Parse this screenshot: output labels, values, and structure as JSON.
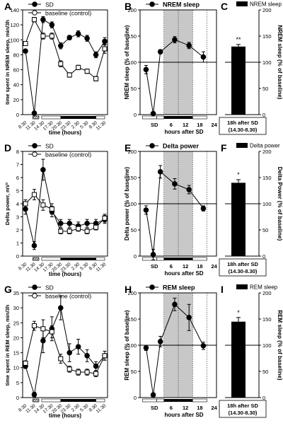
{
  "chart_data": [
    {
      "panel": "A",
      "type": "line",
      "ylabel": "time spent in NREM sleep, min/3h",
      "xlabel": "time (hours)",
      "ylim": [
        0,
        140
      ],
      "yticks": [
        0,
        20,
        40,
        60,
        80,
        100,
        120,
        140
      ],
      "x": [
        "8.30",
        "11.30",
        "14.30",
        "17.30",
        "20.30",
        "23.30",
        "2.30",
        "5.30",
        "8.30",
        "11.30"
      ],
      "legend": [
        "SD",
        "baseline (control)"
      ],
      "series": [
        {
          "name": "SD",
          "values": [
            85,
            2,
            127,
            120,
            92,
            103,
            108,
            102,
            80,
            98
          ],
          "errors": [
            0,
            0,
            4,
            4,
            4,
            3,
            4,
            4,
            4,
            5
          ]
        },
        {
          "name": "baseline (control)",
          "values": [
            95,
            127,
            105,
            105,
            68,
            53,
            63,
            58,
            48,
            88
          ],
          "errors": [
            0,
            3,
            4,
            4,
            4,
            3,
            3,
            3,
            3,
            6
          ]
        }
      ]
    },
    {
      "panel": "B",
      "type": "line",
      "legend": [
        "NREM sleep"
      ],
      "ylabel": "NREM sleep (% of baseline)",
      "xlabel": "hours after SD",
      "ylim": [
        0,
        200
      ],
      "yticks": [
        0,
        50,
        100,
        150,
        200
      ],
      "xticks": [
        "6",
        "12",
        "18",
        "24"
      ],
      "sd_label": "SD",
      "x": [
        -4.5,
        -1.5,
        1.5,
        7.5,
        13.5,
        19.5
      ],
      "values": [
        86,
        2,
        120,
        143,
        132,
        110
      ],
      "errors": [
        8,
        0,
        4,
        6,
        6,
        10
      ]
    },
    {
      "panel": "C",
      "type": "bar",
      "legend": [
        "NREM sleep"
      ],
      "ylabel": "NREM sleep (% of baseline)",
      "ylim": [
        0,
        200
      ],
      "yticks": [
        0,
        50,
        100,
        150,
        200
      ],
      "categories": [
        "18h after SD (14.30-8.30)"
      ],
      "values": [
        130
      ],
      "errors": [
        4
      ],
      "significance": "**"
    },
    {
      "panel": "D",
      "type": "line",
      "ylabel": "Delta power, mV²",
      "xlabel": "time (hours)",
      "ylim": [
        0,
        8
      ],
      "yticks": [
        0,
        1,
        2,
        3,
        4,
        5,
        6,
        7,
        8
      ],
      "x": [
        "8.30",
        "11.30",
        "14.30",
        "17.30",
        "20.30",
        "23.30",
        "2.30",
        "5.30",
        "8.30",
        "11.30"
      ],
      "legend": [
        "SD",
        "baseline (control)"
      ],
      "series": [
        {
          "name": "SD",
          "values": [
            3.6,
            0.8,
            6.6,
            3.4,
            2.5,
            2.5,
            2.3,
            2.5,
            2.5,
            2.8
          ],
          "errors": [
            0.4,
            0.3,
            0.8,
            0.4,
            0.3,
            0.3,
            0.3,
            0.3,
            0.3,
            0.3
          ]
        },
        {
          "name": "baseline (control)",
          "values": [
            4.0,
            4.7,
            3.9,
            3.6,
            1.9,
            1.9,
            2.1,
            1.9,
            2.2,
            2.9
          ],
          "errors": [
            0.3,
            0.4,
            0.4,
            0.4,
            0.2,
            0.2,
            0.2,
            0.2,
            0.2,
            0.3
          ]
        }
      ]
    },
    {
      "panel": "E",
      "type": "line",
      "legend": [
        "Delta power"
      ],
      "ylabel": "Delta power (% of baseline)",
      "xlabel": "hours after SD",
      "ylim": [
        0,
        200
      ],
      "yticks": [
        0,
        50,
        100,
        150,
        200
      ],
      "xticks": [
        "6",
        "12",
        "18",
        "24"
      ],
      "sd_label": "SD",
      "x": [
        -4.5,
        -1.5,
        1.5,
        7.5,
        13.5,
        19.5
      ],
      "values": [
        88,
        3,
        161,
        138,
        127,
        91
      ],
      "errors": [
        8,
        10,
        12,
        10,
        8,
        5
      ]
    },
    {
      "panel": "F",
      "type": "bar",
      "legend": [
        "Delta power"
      ],
      "ylabel": "Delta Power (% of baseline)",
      "ylim": [
        0,
        200
      ],
      "yticks": [
        0,
        50,
        100,
        150,
        200
      ],
      "categories": [
        "18h after SD (14.30-8.30)"
      ],
      "values": [
        140
      ],
      "errors": [
        6
      ],
      "significance": "*"
    },
    {
      "panel": "G",
      "type": "line",
      "ylabel": "time spent in REM sleep, min/3h",
      "xlabel": "time (hours)",
      "ylim": [
        0,
        35
      ],
      "yticks": [
        0,
        5,
        10,
        15,
        20,
        25,
        30,
        35
      ],
      "x": [
        "8.30",
        "11.30",
        "14.30",
        "17.30",
        "20.30",
        "23.30",
        "2.30",
        "5.30",
        "8.30",
        "11.30"
      ],
      "legend": [
        "SD",
        "baseline (control)"
      ],
      "series": [
        {
          "name": "SD",
          "values": [
            10.5,
            1,
            19,
            23,
            30,
            15,
            17,
            14,
            10.5,
            14
          ],
          "errors": [
            0.8,
            0.8,
            4,
            4,
            4,
            3,
            2.5,
            2,
            1.5,
            1.5
          ]
        },
        {
          "name": "baseline (control)",
          "values": [
            11.5,
            24,
            23,
            22,
            13,
            9.5,
            8.5,
            8.5,
            8,
            14
          ],
          "errors": [
            0.8,
            1.5,
            3,
            2,
            1.5,
            1,
            1,
            1,
            1,
            1.5
          ]
        }
      ]
    },
    {
      "panel": "H",
      "type": "line",
      "legend": [
        "REM sleep"
      ],
      "ylabel": "REM sleep (% of baseline)",
      "xlabel": "hours after SD",
      "ylim": [
        0,
        200
      ],
      "yticks": [
        0,
        50,
        100,
        150,
        200
      ],
      "xticks": [
        "6",
        "12",
        "18",
        "24"
      ],
      "sd_label": "SD",
      "x": [
        -4.5,
        -1.5,
        1.5,
        7.5,
        13.5,
        19.5
      ],
      "values": [
        95,
        5,
        107,
        178,
        153,
        99
      ],
      "errors": [
        5,
        4,
        10,
        12,
        25,
        7
      ]
    },
    {
      "panel": "I",
      "type": "bar",
      "legend": [
        "REM sleep"
      ],
      "ylabel": "REM sleep (% of baseline)",
      "ylim": [
        0,
        200
      ],
      "yticks": [
        0,
        50,
        100,
        150,
        200
      ],
      "categories": [
        "18h after SD (14.30-8.30)"
      ],
      "values": [
        145
      ],
      "errors": [
        8
      ],
      "significance": "*"
    }
  ]
}
